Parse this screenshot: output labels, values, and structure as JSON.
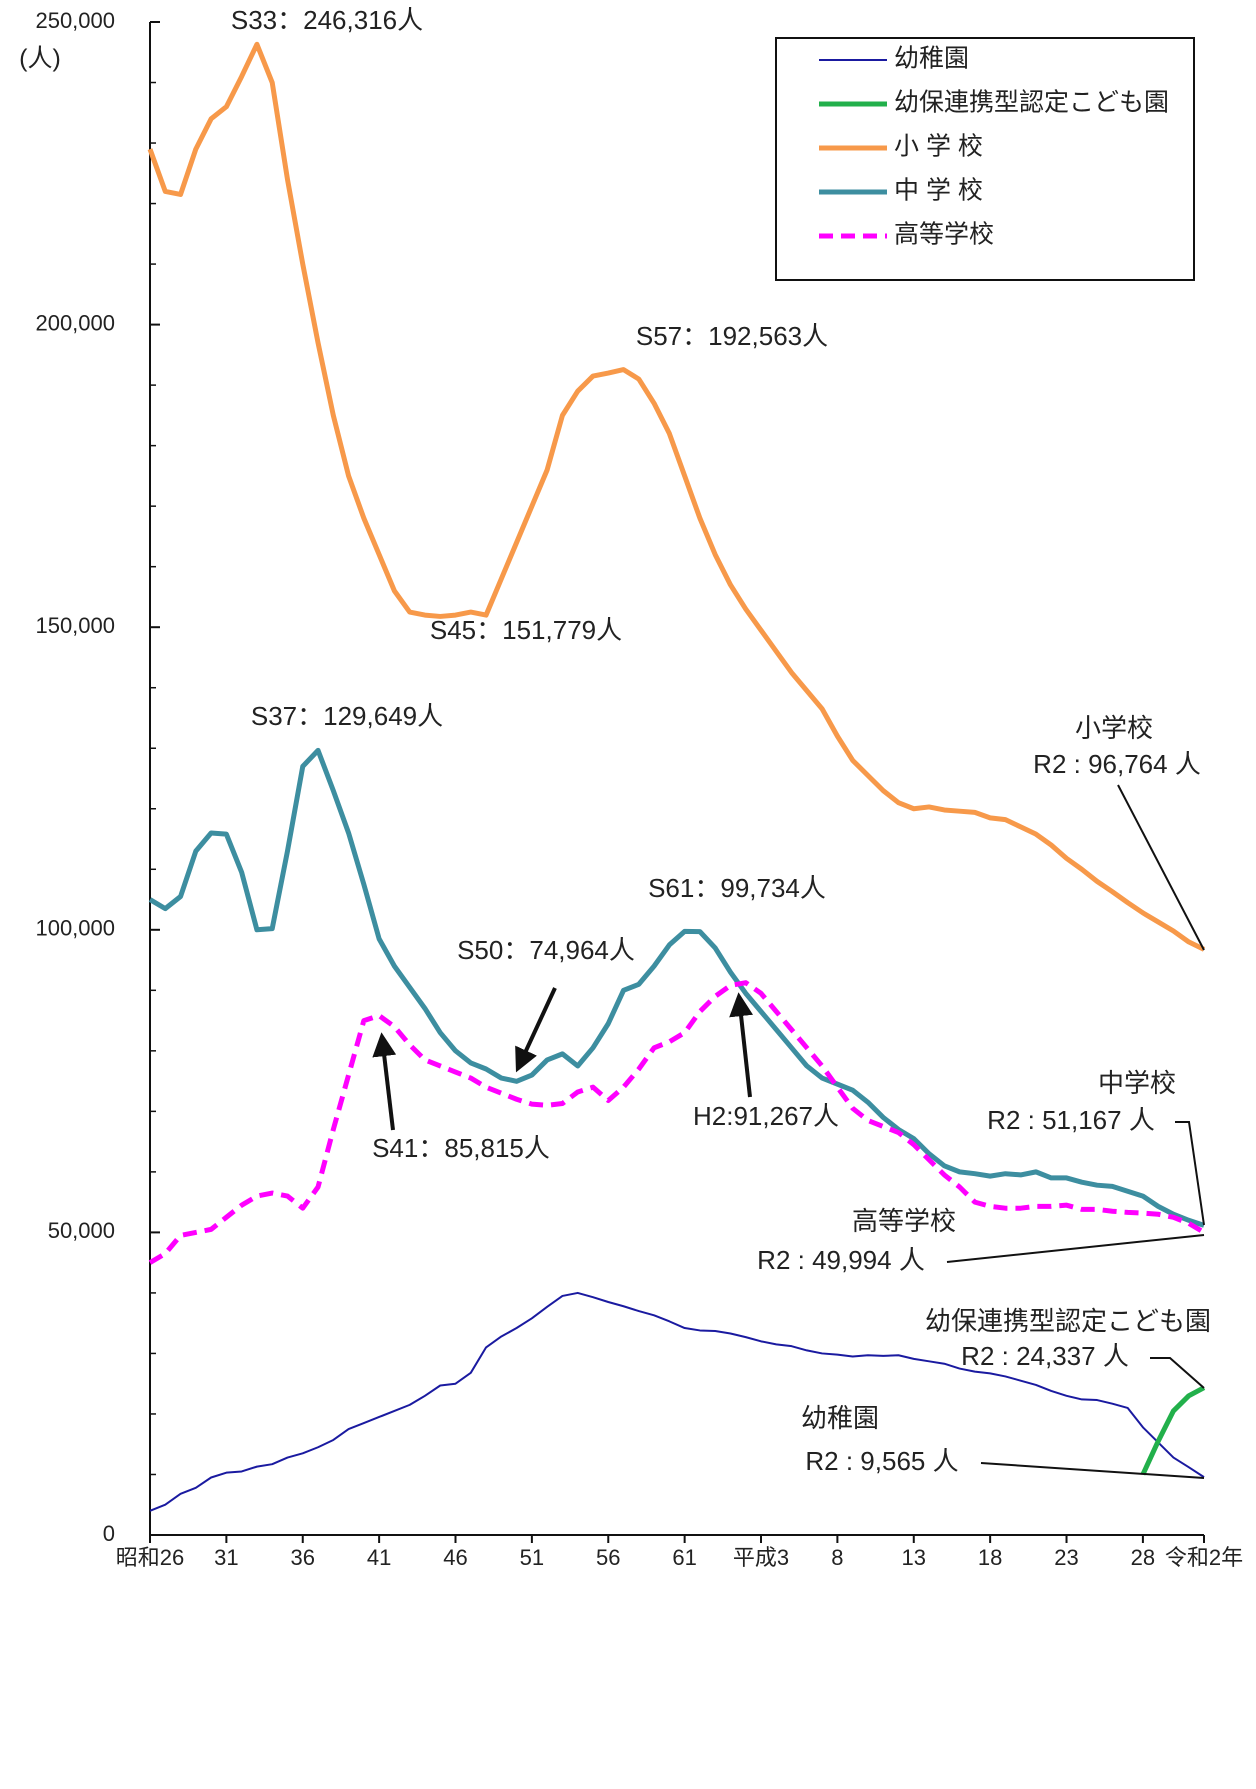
{
  "chart_data": {
    "type": "line",
    "y_label": "(人)",
    "categories": [
      "昭和26",
      null,
      null,
      null,
      null,
      "31",
      null,
      null,
      null,
      null,
      "36",
      null,
      null,
      null,
      null,
      "41",
      null,
      null,
      null,
      null,
      "46",
      null,
      null,
      null,
      null,
      "51",
      null,
      null,
      null,
      null,
      "56",
      null,
      null,
      null,
      null,
      "61",
      null,
      null,
      null,
      null,
      "平成3",
      null,
      null,
      null,
      null,
      "8",
      null,
      null,
      null,
      null,
      "13",
      null,
      null,
      null,
      null,
      "18",
      null,
      null,
      null,
      null,
      "23",
      null,
      null,
      null,
      null,
      "28",
      null,
      null,
      null,
      "令和2年"
    ],
    "ylim": [
      0,
      250000
    ],
    "yticks": [
      {
        "value": 0,
        "label": "0"
      },
      {
        "value": 50000,
        "label": "50,000"
      },
      {
        "value": 100000,
        "label": "100,000"
      },
      {
        "value": 150000,
        "label": "150,000"
      },
      {
        "value": 200000,
        "label": "200,000"
      },
      {
        "value": 250000,
        "label": "250,000"
      }
    ],
    "yticks_minor": [
      10000,
      20000,
      30000,
      40000,
      60000,
      70000,
      80000,
      90000,
      110000,
      120000,
      130000,
      140000,
      160000,
      170000,
      180000,
      190000,
      210000,
      220000,
      230000,
      240000
    ],
    "legend": "top-right",
    "series": [
      {
        "name": "幼稚園",
        "color": "#1a1aa0",
        "width": 2,
        "values": [
          4000,
          5000,
          6800,
          7800,
          9500,
          10300,
          10500,
          11300,
          11700,
          12800,
          13500,
          14500,
          15700,
          17500,
          18500,
          19500,
          20500,
          21500,
          23000,
          24700,
          25000,
          26800,
          31000,
          32800,
          34200,
          35800,
          37700,
          39500,
          40000,
          39300,
          38500,
          37800,
          37000,
          36300,
          35300,
          34200,
          33800,
          33700,
          33300,
          32700,
          32000,
          31500,
          31200,
          30500,
          30000,
          29800,
          29500,
          29700,
          29600,
          29700,
          29100,
          28700,
          28300,
          27500,
          27000,
          26700,
          26200,
          25500,
          24800,
          23800,
          23000,
          22400,
          22300,
          21700,
          21000,
          17800,
          15300,
          12800,
          11200,
          9565
        ]
      },
      {
        "name": "幼保連携型認定こども園",
        "color": "#22b04b",
        "width": 5,
        "values": [
          null,
          null,
          null,
          null,
          null,
          null,
          null,
          null,
          null,
          null,
          null,
          null,
          null,
          null,
          null,
          null,
          null,
          null,
          null,
          null,
          null,
          null,
          null,
          null,
          null,
          null,
          null,
          null,
          null,
          null,
          null,
          null,
          null,
          null,
          null,
          null,
          null,
          null,
          null,
          null,
          null,
          null,
          null,
          null,
          null,
          null,
          null,
          null,
          null,
          null,
          null,
          null,
          null,
          null,
          null,
          null,
          null,
          null,
          null,
          null,
          null,
          null,
          null,
          null,
          null,
          10000,
          15500,
          20500,
          23000,
          24337
        ]
      },
      {
        "name": "小 学 校",
        "color": "#f7994a",
        "width": 5,
        "values": [
          229000,
          222000,
          221500,
          229000,
          234000,
          236000,
          241000,
          246316,
          240000,
          224000,
          210000,
          197000,
          185000,
          175000,
          168000,
          162000,
          156000,
          152500,
          152000,
          151779,
          152000,
          152500,
          152000,
          158000,
          164000,
          170000,
          176000,
          185000,
          189000,
          191500,
          192000,
          192563,
          191000,
          187000,
          182000,
          175000,
          168000,
          162000,
          157000,
          153000,
          149500,
          146000,
          142500,
          139500,
          136500,
          132000,
          128000,
          125500,
          123000,
          121000,
          120000,
          120300,
          119800,
          119600,
          119400,
          118500,
          118200,
          117000,
          115800,
          114000,
          111800,
          110000,
          108000,
          106300,
          104500,
          102800,
          101300,
          99800,
          98000,
          96764
        ]
      },
      {
        "name": "中 学 校",
        "color": "#3d8ea0",
        "width": 5,
        "values": [
          105000,
          103500,
          105500,
          113000,
          116000,
          115800,
          109500,
          100000,
          100200,
          113000,
          127000,
          129649,
          123000,
          116000,
          107500,
          98500,
          94000,
          90500,
          87000,
          83000,
          80000,
          78000,
          77000,
          75500,
          74964,
          76000,
          78500,
          79500,
          77500,
          80500,
          84500,
          90000,
          91000,
          94000,
          97500,
          99734,
          99700,
          97000,
          93000,
          89500,
          86500,
          83500,
          80500,
          77500,
          75500,
          74500,
          73500,
          71500,
          69000,
          67000,
          65500,
          63000,
          61000,
          60000,
          59700,
          59300,
          59700,
          59500,
          60000,
          59000,
          59000,
          58300,
          57800,
          57600,
          56800,
          56000,
          54300,
          53000,
          52000,
          51167
        ]
      },
      {
        "name": "高等学校",
        "color": "#ff00ff",
        "width": 5,
        "line_style": "dashed",
        "values": [
          45000,
          46500,
          49500,
          50000,
          50500,
          52500,
          54500,
          56000,
          56500,
          56000,
          54000,
          57500,
          67000,
          76000,
          85000,
          85815,
          84000,
          81000,
          78500,
          77500,
          76500,
          75500,
          74000,
          73000,
          72000,
          71200,
          71000,
          71300,
          73200,
          74000,
          71800,
          74000,
          77000,
          80500,
          81500,
          83000,
          86500,
          89000,
          90800,
          91267,
          89500,
          86500,
          83500,
          80500,
          77500,
          74000,
          70500,
          68500,
          67500,
          66500,
          64500,
          62000,
          59500,
          57500,
          55000,
          54300,
          54000,
          54000,
          54300,
          54300,
          54500,
          53800,
          53800,
          53500,
          53300,
          53200,
          53000,
          52500,
          51500,
          49994
        ]
      }
    ],
    "annotations": [
      "S33：246,316人",
      "S57：192,563人",
      "S45：151,779人",
      "S37：129,649人",
      "S61：99,734人",
      "S50：74,964人",
      "S41：85,815人",
      "H2:91,267人",
      "小学校",
      "R2 : 96,764 人",
      "中学校",
      "R2 : 51,167 人",
      "高等学校",
      "R2 : 49,994 人",
      "幼保連携型認定こども園",
      "R2 : 24,337 人",
      "幼稚園",
      "R2 : 9,565 人"
    ]
  }
}
